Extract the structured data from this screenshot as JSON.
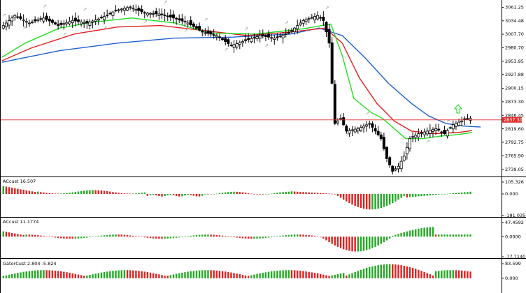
{
  "chart_data": [
    {
      "type": "candlestick",
      "pane": "main",
      "ylim": [
        2726,
        3073
      ],
      "y_ticks": [
        "3061.25",
        "3034.48",
        "3007.70",
        "2980.70",
        "2953.95",
        "2927.88",
        "2900.15",
        "2873.30",
        "2846.45",
        "2819.60",
        "2792.75",
        "2765.90",
        "2739.05"
      ],
      "price_line": {
        "value": 2837.3,
        "label": "2837.30",
        "color": "#e03030"
      },
      "series": [
        {
          "name": "blue",
          "color": "#1e5fd0",
          "points": [
            [
              0,
              2952
            ],
            [
              8,
              2956
            ],
            [
              16,
              2960
            ],
            [
              24,
              2964
            ],
            [
              32,
              2968
            ],
            [
              40,
              2973
            ],
            [
              48,
              2978
            ],
            [
              56,
              2983
            ],
            [
              64,
              2988
            ],
            [
              72,
              2993
            ],
            [
              80,
              3000
            ],
            [
              88,
              3008
            ],
            [
              96,
              3016
            ],
            [
              104,
              3022
            ],
            [
              112,
              3028
            ],
            [
              120,
              3031
            ],
            [
              128,
              3033
            ],
            [
              136,
              3034
            ],
            [
              144,
              3036
            ],
            [
              152,
              3038
            ],
            [
              160,
              3041
            ],
            [
              164,
              3042
            ]
          ]
        },
        {
          "name": "red",
          "color": "#e02020",
          "points": [
            [
              0,
              2955
            ],
            [
              8,
              2965
            ],
            [
              16,
              2978
            ],
            [
              24,
              2988
            ],
            [
              32,
              2995
            ],
            [
              40,
              2999
            ],
            [
              48,
              3004
            ],
            [
              56,
              3010
            ],
            [
              64,
              3016
            ],
            [
              72,
              3022
            ],
            [
              80,
              3027
            ],
            [
              88,
              3032
            ],
            [
              96,
              3035
            ],
            [
              104,
              3037
            ],
            [
              112,
              3035
            ],
            [
              120,
              3030
            ],
            [
              128,
              3025
            ],
            [
              136,
              3019
            ],
            [
              144,
              3012
            ],
            [
              152,
              3005
            ],
            [
              160,
              2998
            ],
            [
              164,
              2994
            ]
          ]
        },
        {
          "name": "green",
          "color": "#22dd22",
          "points": [
            [
              0,
              2960
            ],
            [
              8,
              2975
            ],
            [
              16,
              2990
            ],
            [
              24,
              3000
            ],
            [
              32,
              3005
            ],
            [
              40,
              3010
            ],
            [
              48,
              3015
            ],
            [
              56,
              3018
            ],
            [
              64,
              3021
            ],
            [
              72,
              3026
            ],
            [
              80,
              3031
            ],
            [
              88,
              3038
            ],
            [
              96,
              3042
            ],
            [
              104,
              3046
            ],
            [
              112,
              3043
            ],
            [
              120,
              3038
            ],
            [
              128,
              3030
            ],
            [
              136,
              3022
            ],
            [
              144,
              3014
            ],
            [
              152,
              3007
            ],
            [
              160,
              3001
            ],
            [
              164,
              2998
            ]
          ]
        }
      ],
      "candles": [
        [
          2998,
          3008,
          2990,
          3005
        ],
        [
          3005,
          3012,
          3000,
          3002
        ],
        [
          3002,
          3010,
          2995,
          3008
        ],
        [
          3008,
          3020,
          3003,
          3015
        ],
        [
          3015,
          3025,
          3010,
          3012
        ],
        [
          3012,
          3018,
          3005,
          3016
        ],
        [
          3016,
          3030,
          3014,
          3028
        ],
        [
          3028,
          3035,
          3020,
          3022
        ],
        [
          3022,
          3030,
          3015,
          3025
        ],
        [
          3025,
          3040,
          3022,
          3038
        ],
        [
          3038,
          3045,
          3030,
          3032
        ],
        [
          3032,
          3038,
          3024,
          3030
        ],
        [
          3030,
          3036,
          3020,
          3024
        ],
        [
          3024,
          3030,
          3015,
          3028
        ],
        [
          3028,
          3042,
          3025,
          3040
        ],
        [
          3040,
          3060,
          3036,
          3055
        ],
        [
          3055,
          3066,
          3045,
          3050
        ],
        [
          3050,
          3058,
          3040,
          3046
        ],
        [
          3046,
          3050,
          3030,
          3034
        ],
        [
          3034,
          3042,
          3026,
          3040
        ],
        [
          3040,
          3050,
          3035,
          3045
        ],
        [
          3045,
          3052,
          3030,
          3032
        ],
        [
          3032,
          3036,
          3010,
          3015
        ],
        [
          3015,
          3022,
          3000,
          3020
        ],
        [
          3020,
          3025,
          3005,
          3010
        ],
        [
          3010,
          3018,
          3000,
          3014
        ],
        [
          3014,
          3028,
          3010,
          3025
        ],
        [
          3025,
          3032,
          3015,
          3020
        ],
        [
          3020,
          3026,
          3008,
          3012
        ],
        [
          3012,
          3020,
          3002,
          3016
        ]
      ],
      "arrow": {
        "direction": "up",
        "color": "#22cc22"
      }
    },
    {
      "type": "histogram",
      "pane": "AC1",
      "title": "ACcust 16.507",
      "y_ticks": [
        "105.326",
        "0.000",
        "-181.035"
      ],
      "ylim": [
        -181.035,
        105.326
      ]
    },
    {
      "type": "histogram",
      "pane": "AC2",
      "title": "ACcust 11.1774",
      "y_ticks": [
        "47.4592",
        "0.0000",
        "-77.7140"
      ],
      "ylim": [
        -77.714,
        47.4592
      ]
    },
    {
      "type": "histogram",
      "pane": "Gator",
      "title": "GatorCust 2.804 -5.824",
      "y_ticks": [
        "83.599",
        "0.000"
      ],
      "ylim": [
        -83.599,
        83.599
      ]
    }
  ]
}
